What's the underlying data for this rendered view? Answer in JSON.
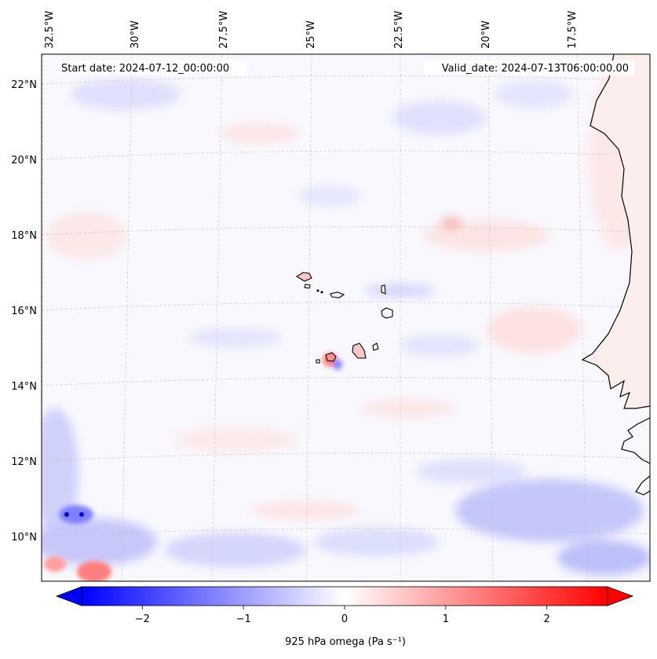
{
  "map": {
    "start_date": "Start date: 2024-07-12_00:00:00",
    "valid_date": "Valid_date: 2024-07-13T06:00:00.00",
    "lon_labels": [
      "32.5°W",
      "30°W",
      "27.5°W",
      "25°W",
      "22.5°W",
      "20°W",
      "17.5°W"
    ],
    "lat_labels": [
      "22°N",
      "20°N",
      "18°N",
      "16°N",
      "14°N",
      "12°N",
      "10°N"
    ],
    "variable": "925 hPa omega",
    "units": "Pa s⁻¹",
    "colormap": "bwr",
    "colorbar": {
      "ticks": [
        "−2",
        "−1",
        "0",
        "1",
        "2"
      ],
      "range": [
        -2.6,
        2.6
      ],
      "extend": "both"
    },
    "colors": {
      "negative": "#0000ff",
      "neutral": "#ffffff",
      "positive": "#ff0000",
      "coastline": "#000000",
      "gridline": "#bbbbbb"
    }
  }
}
